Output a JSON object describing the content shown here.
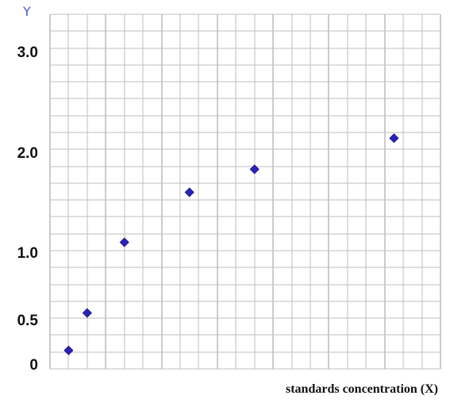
{
  "chart_data": {
    "type": "scatter",
    "title": "",
    "xlabel": "standards concentration (X)",
    "ylabel": "Y",
    "x": [
      1,
      2,
      4,
      7.5,
      11,
      18.5
    ],
    "y": [
      0.05,
      0.55,
      1.1,
      1.6,
      1.83,
      2.14
    ],
    "xlim": [
      0,
      21
    ],
    "y_ticks": [
      {
        "value": 0,
        "label": "0"
      },
      {
        "value": 0.5,
        "label": "0.5"
      },
      {
        "value": 1.0,
        "label": "1.0"
      },
      {
        "value": 2.0,
        "label": "2.0"
      },
      {
        "value": 3.0,
        "label": "3.0"
      }
    ],
    "grid": true,
    "marker": "diamond",
    "colors": {
      "marker": "#2b22b8",
      "ylabel": "#4a5bd0",
      "grid": "#bfbfbf"
    }
  }
}
